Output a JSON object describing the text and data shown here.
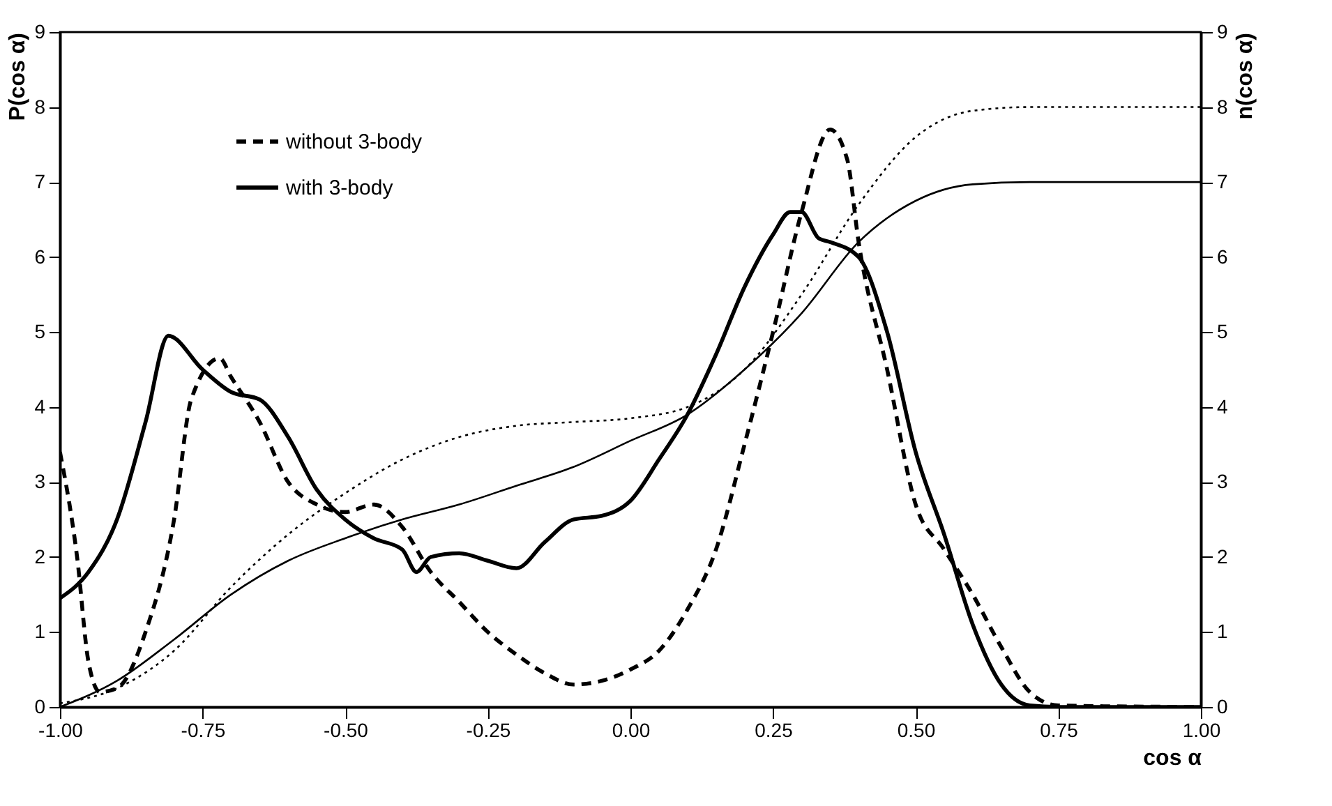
{
  "chart_data": {
    "type": "line",
    "xlabel": "cos α",
    "ylabel": "P(cos α)",
    "y2label": "n(cos α)",
    "xlim": [
      -1,
      1
    ],
    "xticks": [
      {
        "value": -1,
        "label": "-1.00"
      },
      {
        "value": -0.75,
        "label": "-0.75"
      },
      {
        "value": -0.5,
        "label": "-0.50"
      },
      {
        "value": -0.25,
        "label": "-0.25"
      },
      {
        "value": 0,
        "label": "0.00"
      },
      {
        "value": 0.25,
        "label": "0.25"
      },
      {
        "value": 0.5,
        "label": "0.50"
      },
      {
        "value": 0.75,
        "label": "0.75"
      },
      {
        "value": 1,
        "label": "1.00"
      }
    ],
    "ylim": [
      0,
      9
    ],
    "yticks": [
      0,
      1,
      2,
      3,
      4,
      5,
      6,
      7,
      8,
      9
    ],
    "y2lim": [
      0,
      9
    ],
    "y2ticks": [
      0,
      1,
      2,
      3,
      4,
      5,
      6,
      7,
      8,
      9
    ],
    "grid": false,
    "legend": "top left",
    "marker": "none",
    "series": [
      {
        "name": "without 3-body",
        "color": "#000000",
        "line_style": "dashed",
        "x": [
          -1,
          -0.97,
          -0.95,
          -0.93,
          -0.9,
          -0.85,
          -0.8,
          -0.77,
          -0.72,
          -0.7,
          -0.65,
          -0.6,
          -0.55,
          -0.5,
          -0.45,
          -0.4,
          -0.35,
          -0.3,
          -0.25,
          -0.2,
          -0.15,
          -0.1,
          -0.05,
          0,
          0.05,
          0.1,
          0.15,
          0.2,
          0.25,
          0.3,
          0.35,
          0.38,
          0.4,
          0.45,
          0.5,
          0.55,
          0.6,
          0.65,
          0.7,
          0.75,
          1
        ],
        "values": [
          3.4,
          2.0,
          0.6,
          0.2,
          0.25,
          1.0,
          2.5,
          4.1,
          4.65,
          4.4,
          3.8,
          3.0,
          2.7,
          2.6,
          2.7,
          2.4,
          1.8,
          1.4,
          1.0,
          0.7,
          0.45,
          0.3,
          0.35,
          0.5,
          0.75,
          1.3,
          2.1,
          3.5,
          5.0,
          6.6,
          7.7,
          7.3,
          6.2,
          4.5,
          2.7,
          2.1,
          1.5,
          0.8,
          0.2,
          0.02,
          0
        ]
      },
      {
        "name": "with 3-body",
        "color": "#000000",
        "line_style": "solid",
        "x": [
          -1,
          -0.95,
          -0.9,
          -0.85,
          -0.81,
          -0.75,
          -0.7,
          -0.65,
          -0.6,
          -0.55,
          -0.5,
          -0.45,
          -0.4,
          -0.375,
          -0.35,
          -0.3,
          -0.25,
          -0.2,
          -0.15,
          -0.1,
          -0.05,
          0,
          0.05,
          0.1,
          0.15,
          0.2,
          0.25,
          0.28,
          0.3,
          0.33,
          0.35,
          0.4,
          0.45,
          0.5,
          0.55,
          0.6,
          0.65,
          0.7,
          0.75,
          1
        ],
        "values": [
          1.45,
          1.8,
          2.5,
          3.8,
          4.95,
          4.5,
          4.2,
          4.1,
          3.6,
          2.9,
          2.5,
          2.25,
          2.1,
          1.8,
          2.0,
          2.05,
          1.95,
          1.85,
          2.2,
          2.5,
          2.55,
          2.75,
          3.3,
          3.9,
          4.7,
          5.6,
          6.3,
          6.6,
          6.6,
          6.25,
          6.2,
          6.0,
          5.0,
          3.4,
          2.3,
          1.1,
          0.3,
          0.02,
          0,
          0
        ]
      },
      {
        "color": "#000000",
        "line_style": "dotted",
        "axis": "y2",
        "x": [
          -1,
          -0.9,
          -0.8,
          -0.7,
          -0.6,
          -0.5,
          -0.4,
          -0.3,
          -0.2,
          -0.1,
          0,
          0.1,
          0.2,
          0.3,
          0.4,
          0.5,
          0.6,
          0.7,
          1
        ],
        "values": [
          0.05,
          0.25,
          0.75,
          1.6,
          2.3,
          2.85,
          3.3,
          3.6,
          3.75,
          3.8,
          3.85,
          4.0,
          4.5,
          5.5,
          6.7,
          7.6,
          7.95,
          8.0,
          8.0
        ]
      },
      {
        "color": "#000000",
        "line_style": "solid",
        "axis": "y2",
        "x": [
          -1,
          -0.9,
          -0.8,
          -0.7,
          -0.6,
          -0.5,
          -0.4,
          -0.3,
          -0.2,
          -0.1,
          0,
          0.1,
          0.2,
          0.3,
          0.4,
          0.5,
          0.6,
          0.7,
          1
        ],
        "values": [
          0,
          0.35,
          0.9,
          1.5,
          1.95,
          2.25,
          2.5,
          2.7,
          2.95,
          3.2,
          3.55,
          3.9,
          4.5,
          5.25,
          6.2,
          6.75,
          6.97,
          7.0,
          7.0
        ]
      }
    ]
  }
}
